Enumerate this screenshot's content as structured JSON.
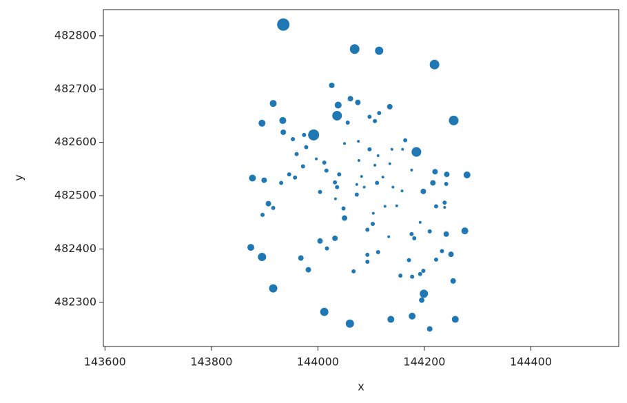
{
  "chart_data": {
    "type": "scatter",
    "xlabel": "x",
    "ylabel": "y",
    "color": "#1f77b4",
    "x": [
      143935,
      144069,
      144115,
      144219,
      144026,
      144061,
      144038,
      144075,
      144135,
      143916,
      144036,
      144115,
      144097,
      144107,
      144056,
      143895,
      143934,
      144255,
      143992,
      143935,
      143974,
      143953,
      144185,
      144076,
      144050,
      144164,
      144097,
      144139,
      144159,
      143978,
      143960,
      143997,
      144012,
      144113,
      144077,
      144107,
      144135,
      144176,
      143972,
      144016,
      144220,
      144242,
      144280,
      143877,
      143899,
      143946,
      143957,
      144040,
      144082,
      144122,
      143931,
      144032,
      144073,
      144111,
      144216,
      144241,
      144036,
      144087,
      144141,
      144004,
      144198,
      144073,
      144158,
      144033,
      143907,
      144238,
      143916,
      144222,
      144238,
      144148,
      144126,
      144048,
      143896,
      144050,
      144104,
      144192,
      144103,
      144276,
      144093,
      144210,
      144241,
      144176,
      144133,
      144032,
      144181,
      144004,
      144017,
      143874,
      144113,
      144093,
      144250,
      144233,
      143895,
      143968,
      144171,
      144222,
      144093,
      143982,
      144067,
      144198,
      144192,
      144155,
      144177,
      144254,
      143916,
      144199,
      144195,
      144012,
      144060,
      144137,
      144177,
      144258,
      144210
    ],
    "y": [
      482821,
      482775,
      482772,
      482746,
      482707,
      482682,
      482670,
      482675,
      482667,
      482673,
      482650,
      482655,
      482648,
      482640,
      482637,
      482636,
      482641,
      482641,
      482614,
      482619,
      482614,
      482606,
      482582,
      482602,
      482598,
      482604,
      482587,
      482587,
      482587,
      482591,
      482578,
      482569,
      482562,
      482575,
      482566,
      482557,
      482560,
      482548,
      482555,
      482547,
      482545,
      482540,
      482539,
      482533,
      482529,
      482540,
      482534,
      482540,
      482536,
      482535,
      482524,
      482525,
      482521,
      482524,
      482524,
      482522,
      482516,
      482516,
      482516,
      482507,
      482508,
      482502,
      482509,
      482494,
      482485,
      482487,
      482477,
      482480,
      482478,
      482481,
      482480,
      482476,
      482464,
      482458,
      482467,
      482450,
      482447,
      482434,
      482436,
      482433,
      482428,
      482428,
      482423,
      482420,
      482420,
      482415,
      482401,
      482403,
      482394,
      482389,
      482390,
      482396,
      482385,
      482383,
      482379,
      482380,
      482376,
      482361,
      482358,
      482359,
      482353,
      482350,
      482348,
      482340,
      482326,
      482316,
      482304,
      482282,
      482260,
      482268,
      482274,
      482268,
      482250
    ],
    "sizes": [
      81,
      49,
      36,
      49,
      16,
      16,
      25,
      16,
      16,
      25,
      49,
      9,
      9,
      9,
      9,
      25,
      25,
      49,
      64,
      16,
      9,
      9,
      49,
      4,
      4,
      9,
      9,
      4,
      4,
      9,
      9,
      4,
      9,
      4,
      4,
      4,
      4,
      4,
      9,
      9,
      16,
      16,
      25,
      25,
      16,
      9,
      9,
      9,
      4,
      4,
      9,
      9,
      4,
      9,
      16,
      9,
      9,
      4,
      4,
      9,
      16,
      9,
      4,
      4,
      16,
      9,
      9,
      9,
      4,
      4,
      4,
      9,
      9,
      16,
      4,
      4,
      9,
      25,
      9,
      9,
      16,
      9,
      4,
      16,
      9,
      16,
      9,
      25,
      9,
      9,
      16,
      9,
      36,
      16,
      9,
      9,
      9,
      16,
      9,
      9,
      9,
      9,
      9,
      16,
      36,
      36,
      16,
      36,
      36,
      25,
      25,
      25,
      16
    ],
    "xlim": [
      143597,
      144565
    ],
    "ylim": [
      482217,
      482849
    ],
    "xticks": [
      143600,
      143800,
      144000,
      144200,
      144400
    ],
    "yticks": [
      482300,
      482400,
      482500,
      482600,
      482700,
      482800
    ]
  }
}
